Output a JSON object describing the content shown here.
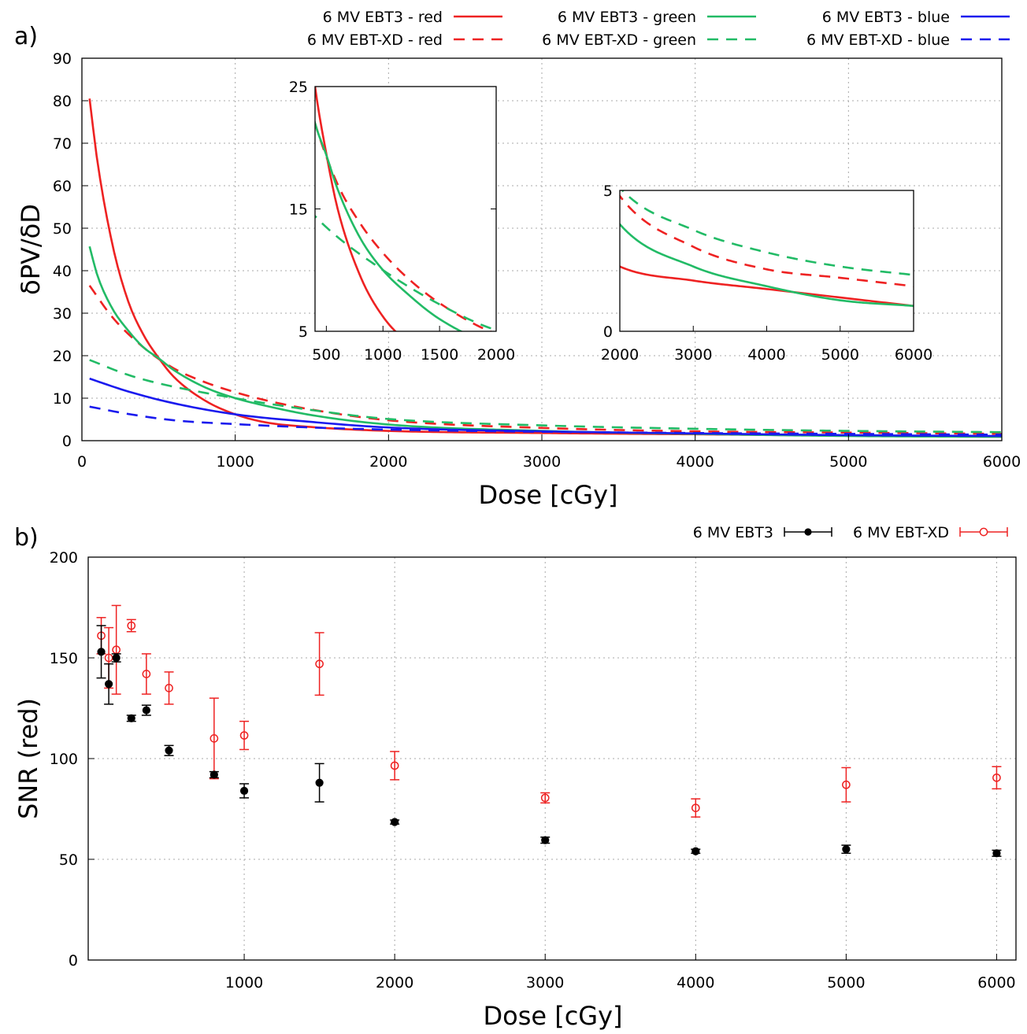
{
  "figure": {
    "panel_a_label": "a)",
    "panel_b_label": "b)"
  },
  "chart_data": [
    {
      "type": "line",
      "panel": "a)",
      "xlabel": "Dose [cGy]",
      "ylabel": "δPV/δD",
      "xlim": [
        0,
        6000
      ],
      "ylim": [
        0,
        90
      ],
      "xticks": [
        0,
        1000,
        2000,
        3000,
        4000,
        5000,
        6000
      ],
      "yticks": [
        0,
        10,
        20,
        30,
        40,
        50,
        60,
        70,
        80,
        90
      ],
      "grid": true,
      "legend_position": "top, outside",
      "series": [
        {
          "name": "6 MV EBT3 - red",
          "color": "#ee2222",
          "dash": "solid",
          "x": [
            50,
            100,
            200,
            300,
            400,
            500,
            600,
            800,
            1000,
            1200,
            1500,
            2000,
            3000,
            4000,
            5000,
            6000
          ],
          "y": [
            80.5,
            66,
            46,
            33,
            25,
            19.5,
            15,
            9.5,
            6.2,
            4.3,
            3.2,
            2.3,
            1.8,
            1.5,
            1.2,
            0.9
          ]
        },
        {
          "name": "6 MV EBT-XD - red",
          "color": "#ee2222",
          "dash": "dashed",
          "x": [
            50,
            200,
            400,
            600,
            800,
            1000,
            1200,
            1500,
            2000,
            3000,
            4000,
            5000,
            6000
          ],
          "y": [
            36.5,
            29,
            22,
            17,
            13.8,
            11.4,
            9.5,
            7.3,
            4.8,
            3.0,
            2.2,
            1.9,
            1.6
          ]
        },
        {
          "name": "6 MV EBT3 - green",
          "color": "#22bb66",
          "dash": "solid",
          "x": [
            50,
            100,
            200,
            300,
            400,
            500,
            600,
            800,
            1000,
            1200,
            1500,
            2000,
            3000,
            4000,
            5000,
            6000
          ],
          "y": [
            45.7,
            39,
            31,
            26,
            22,
            19.4,
            16.6,
            12.6,
            10,
            8.2,
            6,
            3.8,
            2.3,
            1.6,
            1.1,
            0.9
          ]
        },
        {
          "name": "6 MV EBT-XD - green",
          "color": "#22bb66",
          "dash": "dashed",
          "x": [
            50,
            300,
            500,
            1000,
            1500,
            2000,
            3000,
            4000,
            5000,
            6000
          ],
          "y": [
            19,
            15.5,
            13.5,
            10,
            7.2,
            5.1,
            3.6,
            2.8,
            2.3,
            2.0
          ]
        },
        {
          "name": "6 MV EBT3 - blue",
          "color": "#1a1aee",
          "dash": "solid",
          "x": [
            50,
            300,
            600,
            1000,
            1500,
            2000,
            3000,
            4000,
            5000,
            6000
          ],
          "y": [
            14.6,
            11.6,
            8.8,
            6.2,
            4.4,
            3.1,
            2.2,
            1.7,
            1.3,
            1.1
          ]
        },
        {
          "name": "6 MV EBT-XD - blue",
          "color": "#1a1aee",
          "dash": "dashed",
          "x": [
            50,
            300,
            600,
            1000,
            1500,
            2000,
            3000,
            4000,
            5000,
            6000
          ],
          "y": [
            8,
            6.3,
            4.8,
            3.9,
            3.1,
            2.6,
            2.1,
            1.8,
            1.6,
            1.4
          ]
        }
      ],
      "insets": [
        {
          "xlim": [
            400,
            2000
          ],
          "ylim": [
            5,
            25
          ],
          "xticks": [
            500,
            1000,
            1500,
            2000
          ],
          "yticks": [
            5,
            15,
            25
          ],
          "series_shown": [
            "6 MV EBT3 - red",
            "6 MV EBT-XD - red",
            "6 MV EBT3 - green",
            "6 MV EBT-XD - green"
          ]
        },
        {
          "xlim": [
            2000,
            6000
          ],
          "ylim": [
            0,
            5
          ],
          "xticks": [
            2000,
            3000,
            4000,
            5000,
            6000
          ],
          "yticks": [
            0,
            5
          ],
          "series_shown": [
            "6 MV EBT3 - red",
            "6 MV EBT-XD - red",
            "6 MV EBT3 - green",
            "6 MV EBT-XD - green"
          ]
        }
      ]
    },
    {
      "type": "scatter",
      "panel": "b)",
      "xlabel": "Dose [cGy]",
      "ylabel": "SNR (red)",
      "xlim": [
        0,
        6100
      ],
      "ylim": [
        0,
        200
      ],
      "xticks": [
        1000,
        2000,
        3000,
        4000,
        5000,
        6000
      ],
      "yticks": [
        0,
        50,
        100,
        150,
        200
      ],
      "grid": true,
      "legend_position": "top-right, outside",
      "series": [
        {
          "name": "6 MV EBT3",
          "color": "#000000",
          "marker": "filled-circle",
          "x": [
            50,
            100,
            150,
            250,
            350,
            500,
            800,
            1000,
            1500,
            2000,
            3000,
            4000,
            5000,
            6000
          ],
          "y": [
            153,
            137,
            150,
            120,
            124,
            104,
            92,
            84,
            88,
            68.5,
            59.5,
            54,
            55,
            53
          ],
          "err": [
            13,
            10,
            2,
            1.5,
            2.5,
            2.5,
            1.5,
            3.5,
            9.5,
            1,
            1.5,
            1,
            2,
            1.5
          ]
        },
        {
          "name": "6 MV EBT-XD",
          "color": "#ee2222",
          "marker": "open-circle",
          "x": [
            50,
            100,
            150,
            250,
            350,
            500,
            800,
            1000,
            1500,
            2000,
            3000,
            4000,
            5000,
            6000
          ],
          "y": [
            161,
            150,
            154,
            166,
            142,
            135,
            110,
            111.5,
            147,
            96.5,
            80.5,
            75.5,
            87,
            90.5
          ],
          "err": [
            9,
            15,
            22,
            3,
            10,
            8,
            20,
            7,
            15.5,
            7,
            2.5,
            4.5,
            8.5,
            5.5
          ]
        }
      ]
    }
  ]
}
